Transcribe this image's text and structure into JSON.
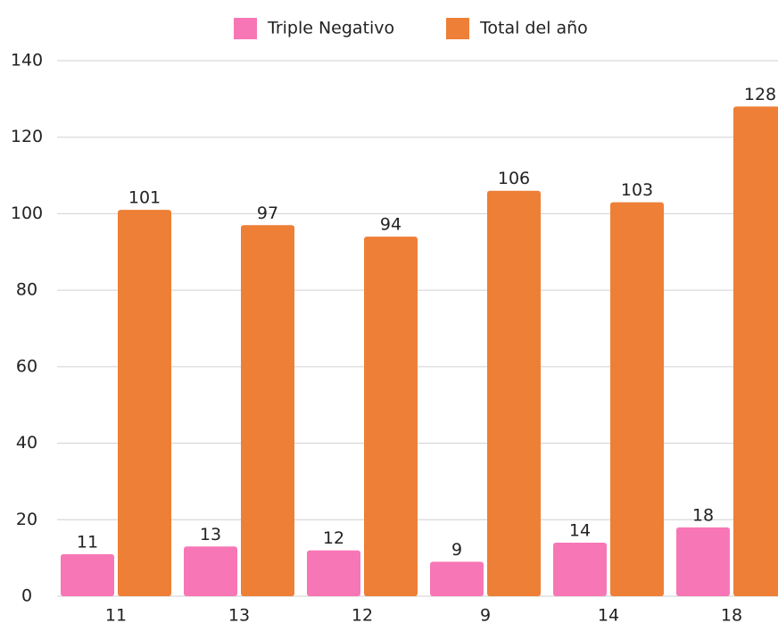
{
  "chart_data": {
    "type": "bar",
    "categories": [
      "11",
      "13",
      "12",
      "9",
      "14",
      "18"
    ],
    "series": [
      {
        "name": "Triple Negativo",
        "color": "#f777b6",
        "values": [
          11,
          13,
          12,
          9,
          14,
          18
        ]
      },
      {
        "name": "Total del año",
        "color": "#ee7f36",
        "values": [
          101,
          97,
          94,
          106,
          103,
          128
        ]
      }
    ],
    "ylim": [
      0,
      140
    ],
    "yticks": [
      0,
      20,
      40,
      60,
      80,
      100,
      120,
      140
    ],
    "grid": true,
    "legend": "top"
  }
}
